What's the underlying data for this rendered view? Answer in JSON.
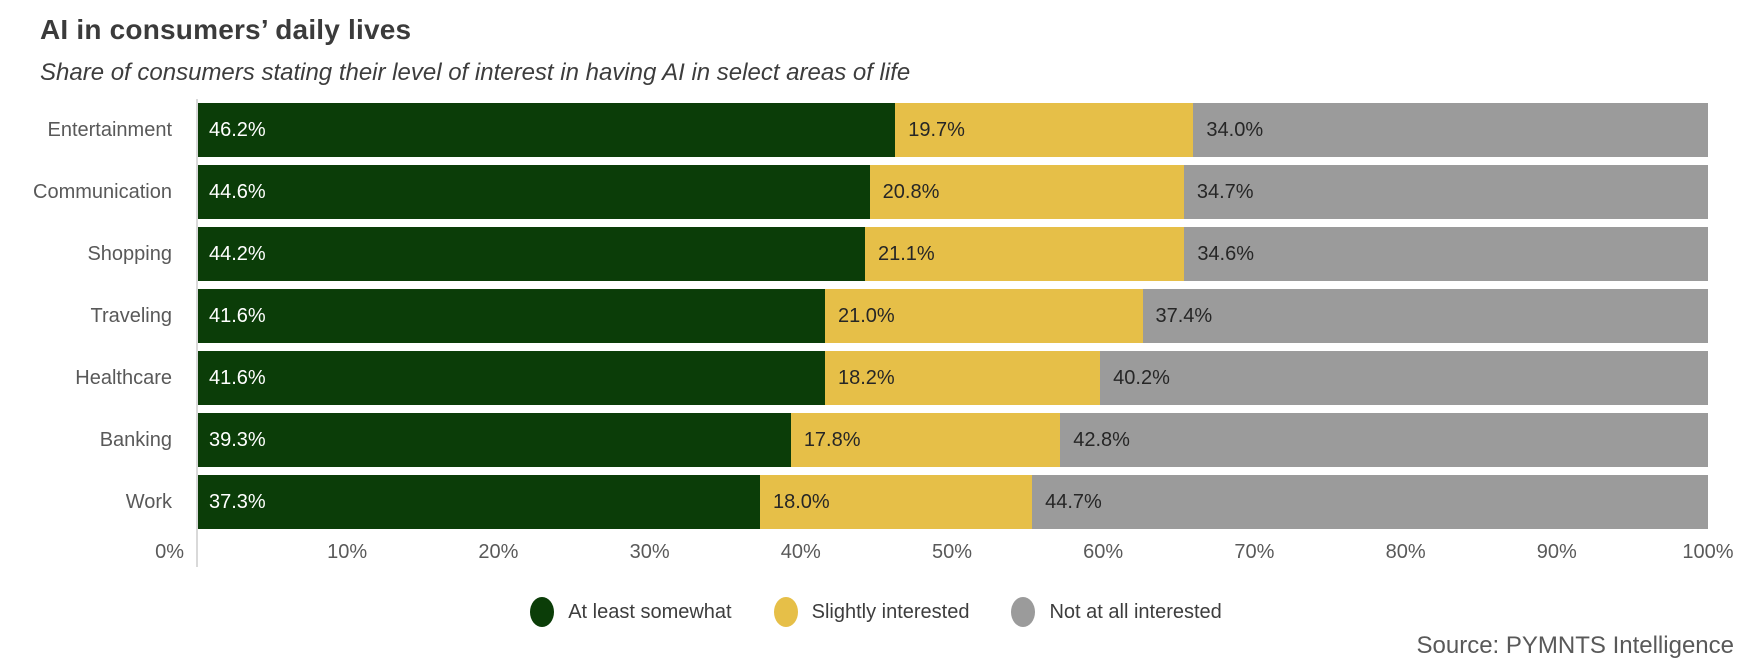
{
  "chart_data": {
    "type": "bar",
    "variant": "horizontal-stacked",
    "title": "AI in consumers’ daily lives",
    "subtitle": "Share of consumers stating their level of interest in having AI in select areas of life",
    "categories": [
      "Entertainment",
      "Communication",
      "Shopping",
      "Traveling",
      "Healthcare",
      "Banking",
      "Work"
    ],
    "series": [
      {
        "name": "At least somewhat",
        "color": "#0b3d08",
        "label_text_color": "#ffffff",
        "values": [
          46.2,
          44.6,
          44.2,
          41.6,
          41.6,
          39.3,
          37.3
        ],
        "labels": [
          "46.2%",
          "44.6%",
          "44.2%",
          "41.6%",
          "41.6%",
          "39.3%",
          "37.3%"
        ]
      },
      {
        "name": "Slightly interested",
        "color": "#e6bf48",
        "label_text_color": "#262626",
        "values": [
          19.7,
          20.8,
          21.1,
          21.0,
          18.2,
          17.8,
          18.0
        ],
        "labels": [
          "19.7%",
          "20.8%",
          "21.1%",
          "21.0%",
          "18.2%",
          "17.8%",
          "18.0%"
        ]
      },
      {
        "name": "Not at all interested",
        "color": "#9b9b9b",
        "label_text_color": "#262626",
        "values": [
          34.0,
          34.7,
          34.6,
          37.4,
          40.2,
          42.8,
          44.7
        ],
        "labels": [
          "34.0%",
          "34.7%",
          "34.6%",
          "37.4%",
          "40.2%",
          "42.8%",
          "44.7%"
        ]
      }
    ],
    "x_ticks": [
      "0%",
      "10%",
      "20%",
      "30%",
      "40%",
      "50%",
      "60%",
      "70%",
      "80%",
      "90%",
      "100%"
    ],
    "xlim": [
      0,
      100
    ],
    "grid": false,
    "legend_position": "bottom-center",
    "axis_line_color": "#d9d9d9",
    "source": "Source: PYMNTS Intelligence"
  }
}
